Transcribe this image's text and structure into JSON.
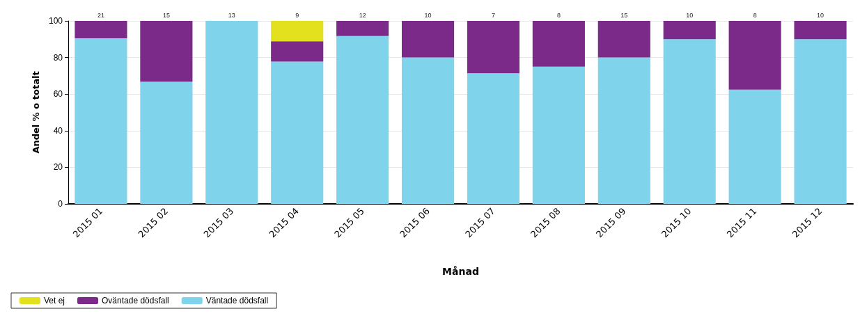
{
  "chart_data": {
    "type": "bar",
    "stacked": true,
    "xlabel": "Månad",
    "ylabel": "Andel % o totalt",
    "categories": [
      "2015 01",
      "2015 02",
      "2015 03",
      "2015 04",
      "2015 05",
      "2015 06",
      "2015 07",
      "2015 08",
      "2015 09",
      "2015 10",
      "2015 11",
      "2015 12"
    ],
    "series": [
      {
        "name": "Väntade dödsfall",
        "color": "#7fd3ea",
        "values": [
          90.5,
          66.7,
          100,
          77.8,
          91.7,
          80,
          71.4,
          75,
          80,
          90,
          62.5,
          90
        ]
      },
      {
        "name": "Oväntade dödsfall",
        "color": "#7b2a8a",
        "values": [
          9.5,
          33.3,
          0,
          11.1,
          8.3,
          20,
          28.6,
          25,
          20,
          10,
          37.5,
          10
        ]
      },
      {
        "name": "Vet ej",
        "color": "#e3e01e",
        "values": [
          0,
          0,
          0,
          11.1,
          0,
          0,
          0,
          0,
          0,
          0,
          0,
          0
        ]
      }
    ],
    "annotations": [
      {
        "text": "21",
        "x": "2015 01",
        "y": 100
      },
      {
        "text": "15",
        "x": "2015 02",
        "y": 100
      },
      {
        "text": "13",
        "x": "2015 03",
        "y": 100
      },
      {
        "text": "9",
        "x": "2015 04",
        "y": 100
      },
      {
        "text": "12",
        "x": "2015 05",
        "y": 100
      },
      {
        "text": "10",
        "x": "2015 06",
        "y": 100
      },
      {
        "text": "7",
        "x": "2015 07",
        "y": 100
      },
      {
        "text": "8",
        "x": "2015 08",
        "y": 100
      },
      {
        "text": "15",
        "x": "2015 09",
        "y": 100
      },
      {
        "text": "10",
        "x": "2015 10",
        "y": 100
      },
      {
        "text": "8",
        "x": "2015 11",
        "y": 100
      },
      {
        "text": "10",
        "x": "2015 12",
        "y": 100
      }
    ],
    "ylim": [
      0,
      100
    ],
    "yticks": [
      0,
      20,
      40,
      60,
      80,
      100
    ],
    "grid": "y",
    "legend": "bottom left"
  }
}
